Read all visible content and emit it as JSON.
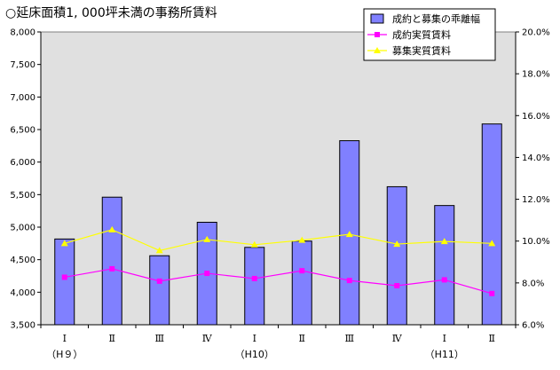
{
  "chart_data": {
    "type": "bar",
    "title": "○延床面積1, 000坪未満の事務所賃料",
    "categories": [
      "Ⅰ",
      "Ⅱ",
      "Ⅲ",
      "Ⅳ",
      "Ⅰ",
      "Ⅱ",
      "Ⅲ",
      "Ⅳ",
      "Ⅰ",
      "Ⅱ"
    ],
    "year_labels": [
      {
        "index": 0,
        "text": "（H９）"
      },
      {
        "index": 4,
        "text": "（H10）"
      },
      {
        "index": 8,
        "text": "（H11）"
      }
    ],
    "y_left": {
      "lim": [
        3500,
        8000
      ],
      "ticks": [
        "3,500",
        "4,000",
        "4,500",
        "5,000",
        "5,500",
        "6,000",
        "6,500",
        "7,000",
        "7,500",
        "8,000"
      ]
    },
    "y_right": {
      "lim": [
        6.0,
        20.0
      ],
      "ticks": [
        "6.0%",
        "8.0%",
        "10.0%",
        "12.0%",
        "14.0%",
        "16.0%",
        "18.0%",
        "20.0%"
      ]
    },
    "grid": false,
    "legend_position": "top-right",
    "series": [
      {
        "name": "成約と募集の乖離幅",
        "kind": "bar",
        "axis": "right",
        "values": [
          10.1,
          12.1,
          9.3,
          10.9,
          9.7,
          10.0,
          14.8,
          12.6,
          11.7,
          15.6
        ],
        "color": "#8080ff"
      },
      {
        "name": "成約実質賃料",
        "kind": "line",
        "axis": "left",
        "values": [
          4230,
          4360,
          4170,
          4290,
          4210,
          4330,
          4180,
          4100,
          4190,
          3980
        ],
        "color": "#ff00ff"
      },
      {
        "name": "募集実質賃料",
        "kind": "line",
        "axis": "left",
        "values": [
          4750,
          4960,
          4640,
          4810,
          4730,
          4800,
          4890,
          4740,
          4780,
          4750
        ],
        "color": "#ffff00"
      }
    ]
  }
}
